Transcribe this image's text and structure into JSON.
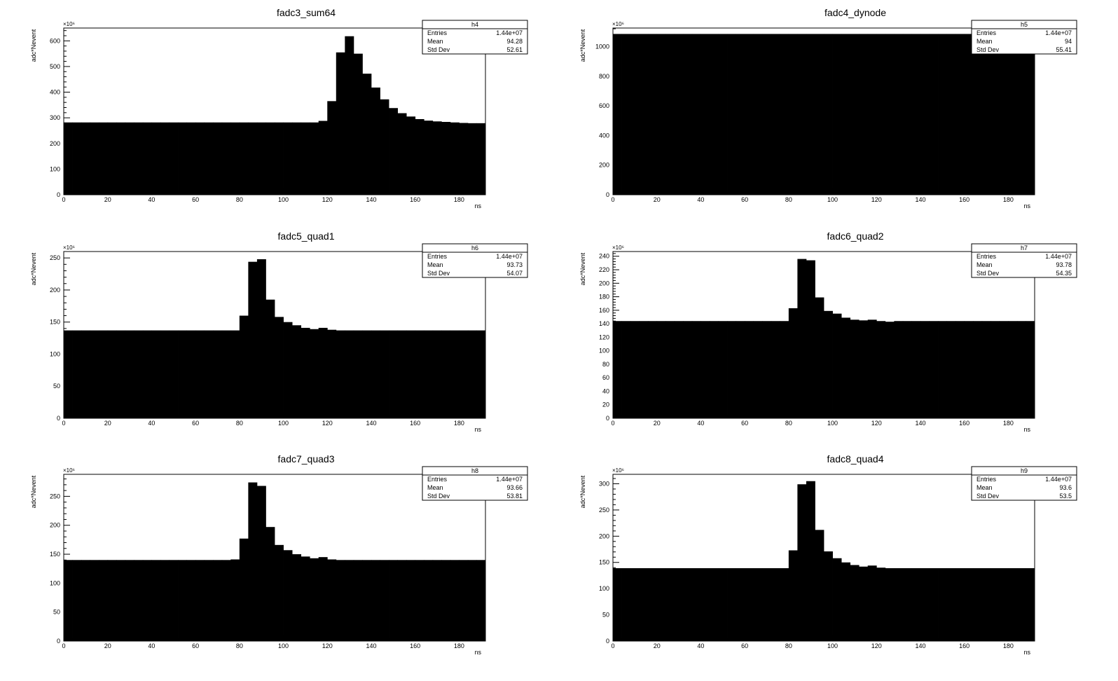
{
  "chart_data": [
    {
      "type": "bar",
      "title": "fadc3_sum64",
      "xlabel": "ns",
      "ylabel": "adc*Nevent",
      "y_multiplier": "×10⁶",
      "xlim": [
        0,
        192
      ],
      "ylim": [
        0,
        650
      ],
      "xticks": [
        0,
        20,
        40,
        60,
        80,
        100,
        120,
        140,
        160,
        180
      ],
      "yticks": [
        0,
        100,
        200,
        300,
        400,
        500,
        600
      ],
      "bin_width": 4,
      "values": [
        282,
        282,
        282,
        282,
        282,
        282,
        282,
        282,
        282,
        282,
        282,
        282,
        282,
        282,
        282,
        282,
        282,
        282,
        282,
        282,
        282,
        282,
        282,
        282,
        282,
        282,
        282,
        282,
        282,
        288,
        365,
        555,
        618,
        550,
        472,
        418,
        372,
        338,
        318,
        305,
        295,
        289,
        286,
        284,
        282,
        280,
        279,
        279,
        278,
        278
      ],
      "stats": {
        "name": "h4",
        "entries_label": "Entries",
        "entries": "1.44e+07",
        "mean_label": "Mean",
        "mean": "94.28",
        "std_label": "Std Dev",
        "std": "52.61"
      }
    },
    {
      "type": "bar",
      "title": "fadc4_dynode",
      "xlabel": "ns",
      "ylabel": "adc*Nevent",
      "y_multiplier": "×10⁶",
      "xlim": [
        0,
        192
      ],
      "ylim": [
        0,
        1125
      ],
      "xticks": [
        0,
        20,
        40,
        60,
        80,
        100,
        120,
        140,
        160,
        180
      ],
      "yticks": [
        0,
        200,
        400,
        600,
        800,
        1000
      ],
      "bin_width": 4,
      "values": [
        1085,
        1085,
        1085,
        1085,
        1085,
        1085,
        1085,
        1085,
        1085,
        1085,
        1085,
        1085,
        1085,
        1085,
        1085,
        1085,
        1085,
        1085,
        1085,
        1085,
        1085,
        1085,
        1085,
        1085,
        1085,
        1085,
        1085,
        1085,
        1085,
        1085,
        1085,
        1085,
        1085,
        1085,
        1085,
        1085,
        1085,
        1085,
        1085,
        1085,
        1085,
        1085,
        1085,
        1085,
        1085,
        1085,
        1085,
        1085,
        1085,
        1085
      ],
      "stats": {
        "name": "h5",
        "entries_label": "Entries",
        "entries": "1.44e+07",
        "mean_label": "Mean",
        "mean": "94",
        "std_label": "Std Dev",
        "std": "55.41"
      }
    },
    {
      "type": "bar",
      "title": "fadc5_quad1",
      "xlabel": "ns",
      "ylabel": "adc*Nevent",
      "y_multiplier": "×10⁶",
      "xlim": [
        0,
        192
      ],
      "ylim": [
        0,
        260
      ],
      "xticks": [
        0,
        20,
        40,
        60,
        80,
        100,
        120,
        140,
        160,
        180
      ],
      "yticks": [
        0,
        50,
        100,
        150,
        200,
        250
      ],
      "bin_width": 4,
      "values": [
        137,
        137,
        137,
        137,
        137,
        137,
        137,
        137,
        137,
        137,
        137,
        137,
        137,
        137,
        137,
        137,
        137,
        137,
        137,
        137,
        160,
        244,
        248,
        185,
        158,
        150,
        145,
        141,
        139,
        141,
        138,
        137,
        137,
        137,
        137,
        137,
        137,
        137,
        137,
        137,
        137,
        137,
        137,
        137,
        137,
        137,
        137,
        137,
        137,
        137
      ],
      "stats": {
        "name": "h6",
        "entries_label": "Entries",
        "entries": "1.44e+07",
        "mean_label": "Mean",
        "mean": "93.73",
        "std_label": "Std Dev",
        "std": "54.07"
      }
    },
    {
      "type": "bar",
      "title": "fadc6_quad2",
      "xlabel": "ns",
      "ylabel": "adc*Nevent",
      "y_multiplier": "×10⁶",
      "xlim": [
        0,
        192
      ],
      "ylim": [
        0,
        247
      ],
      "xticks": [
        0,
        20,
        40,
        60,
        80,
        100,
        120,
        140,
        160,
        180
      ],
      "yticks": [
        0,
        20,
        40,
        60,
        80,
        100,
        120,
        140,
        160,
        180,
        200,
        220,
        240
      ],
      "bin_width": 4,
      "values": [
        144,
        144,
        144,
        144,
        144,
        144,
        144,
        144,
        144,
        144,
        144,
        144,
        144,
        144,
        144,
        144,
        144,
        144,
        144,
        144,
        163,
        236,
        234,
        179,
        159,
        155,
        149,
        146,
        145,
        146,
        144,
        143,
        144,
        144,
        144,
        144,
        144,
        144,
        144,
        144,
        144,
        144,
        144,
        144,
        144,
        144,
        144,
        144,
        144,
        144
      ],
      "stats": {
        "name": "h7",
        "entries_label": "Entries",
        "entries": "1.44e+07",
        "mean_label": "Mean",
        "mean": "93.78",
        "std_label": "Std Dev",
        "std": "54.35"
      }
    },
    {
      "type": "bar",
      "title": "fadc7_quad3",
      "xlabel": "ns",
      "ylabel": "adc*Nevent",
      "y_multiplier": "×10⁶",
      "xlim": [
        0,
        192
      ],
      "ylim": [
        0,
        288
      ],
      "xticks": [
        0,
        20,
        40,
        60,
        80,
        100,
        120,
        140,
        160,
        180
      ],
      "yticks": [
        0,
        50,
        100,
        150,
        200,
        250
      ],
      "bin_width": 4,
      "values": [
        140,
        140,
        140,
        140,
        140,
        140,
        140,
        140,
        140,
        140,
        140,
        140,
        140,
        140,
        140,
        140,
        140,
        140,
        140,
        141,
        177,
        274,
        268,
        197,
        166,
        157,
        150,
        146,
        143,
        145,
        141,
        140,
        140,
        140,
        140,
        140,
        140,
        140,
        140,
        140,
        140,
        140,
        140,
        140,
        140,
        140,
        140,
        140,
        140,
        140
      ],
      "stats": {
        "name": "h8",
        "entries_label": "Entries",
        "entries": "1.44e+07",
        "mean_label": "Mean",
        "mean": "93.66",
        "std_label": "Std Dev",
        "std": "53.81"
      }
    },
    {
      "type": "bar",
      "title": "fadc8_quad4",
      "xlabel": "ns",
      "ylabel": "adc*Nevent",
      "y_multiplier": "×10⁶",
      "xlim": [
        0,
        192
      ],
      "ylim": [
        0,
        318
      ],
      "xticks": [
        0,
        20,
        40,
        60,
        80,
        100,
        120,
        140,
        160,
        180
      ],
      "yticks": [
        0,
        50,
        100,
        150,
        200,
        250,
        300
      ],
      "bin_width": 4,
      "values": [
        139,
        139,
        139,
        139,
        139,
        139,
        139,
        139,
        139,
        139,
        139,
        139,
        139,
        139,
        139,
        139,
        139,
        139,
        139,
        139,
        173,
        299,
        305,
        212,
        171,
        158,
        150,
        145,
        142,
        144,
        140,
        139,
        139,
        139,
        139,
        139,
        139,
        139,
        139,
        139,
        139,
        139,
        139,
        139,
        139,
        139,
        139,
        139,
        139,
        139
      ],
      "stats": {
        "name": "h9",
        "entries_label": "Entries",
        "entries": "1.44e+07",
        "mean_label": "Mean",
        "mean": "93.6",
        "std_label": "Std Dev",
        "std": "53.5"
      }
    }
  ]
}
